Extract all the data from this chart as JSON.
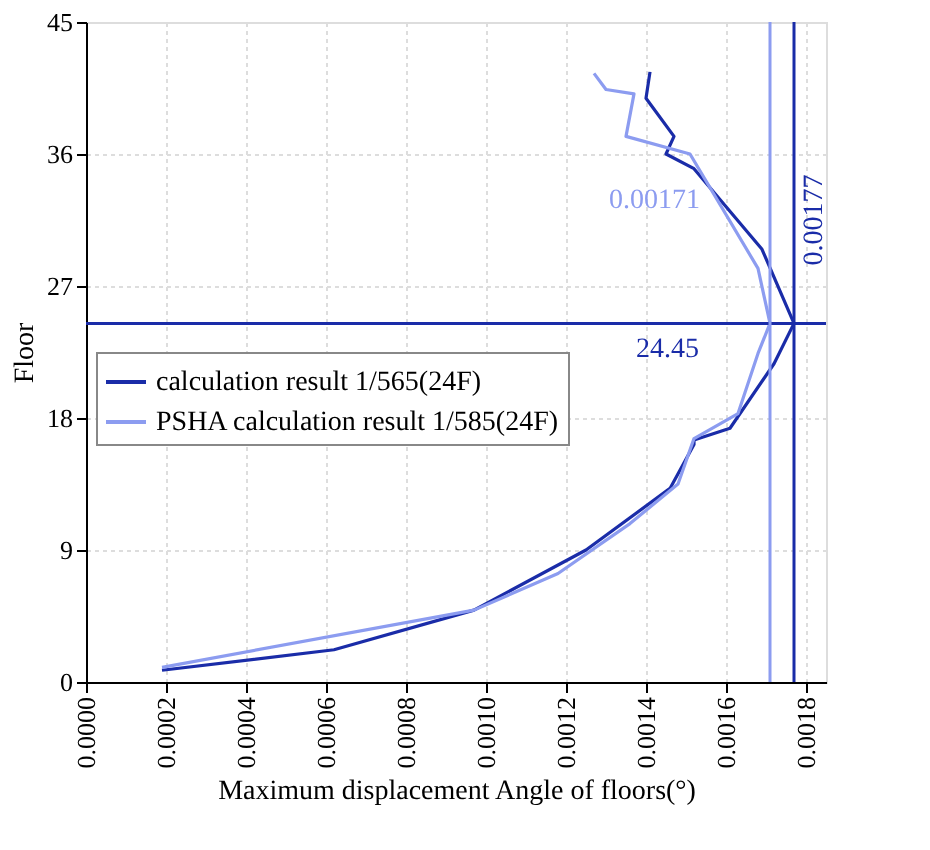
{
  "chart_data": {
    "type": "line",
    "xlabel": "Maximum displacement Angle of floors(°)",
    "ylabel": "Floor",
    "series": [
      {
        "name": "calculation result 1/565(24F)",
        "color": "#1a2ca8",
        "x": [
          0.00019,
          0.00062,
          0.00097,
          0.00125,
          0.00146,
          0.00152,
          0.00152,
          0.00161,
          0.00172,
          0.00177,
          0.00169,
          0.00152,
          0.00145,
          0.00147,
          0.0014,
          0.00141
        ],
        "values": [
          0.8,
          2.2,
          4.9,
          9,
          13.2,
          16.2,
          16.5,
          17.3,
          21.7,
          24.45,
          29.5,
          35,
          36,
          37.2,
          39.8,
          41.6
        ]
      },
      {
        "name": "PSHA calculation result 1/585(24F)",
        "color": "#8c9cf0",
        "x": [
          0.00019,
          0.00097,
          0.00118,
          0.00136,
          0.00148,
          0.00152,
          0.00163,
          0.00168,
          0.00171,
          0.00168,
          0.00151,
          0.00135,
          0.00137,
          0.0013,
          0.00127
        ],
        "values": [
          1.0,
          4.9,
          7.4,
          10.8,
          13.5,
          16.6,
          18.3,
          22.4,
          24.45,
          28.2,
          36,
          37.2,
          40.1,
          40.4,
          41.5
        ]
      }
    ],
    "xlim": [
      0,
      0.00185
    ],
    "ylim": [
      0,
      45
    ],
    "xticks": [
      {
        "value": 0,
        "label": "0.0000"
      },
      0.0002,
      0.0004,
      0.0006,
      0.0008,
      {
        "value": 0.001,
        "label": "0.0010"
      },
      0.0012,
      0.0014,
      0.0016,
      0.0018
    ],
    "yticks": [
      0,
      9,
      18,
      27,
      36,
      45
    ],
    "ref_lines": [
      {
        "axis": "y",
        "value": 24.45,
        "label": "24.45",
        "color": "#1a2ca8"
      },
      {
        "axis": "x",
        "value": 0.00177,
        "label": "0.00177",
        "color": "#1a2ca8"
      },
      {
        "axis": "x",
        "value": 0.00171,
        "label": "0.00171",
        "color": "#8c9cf0"
      }
    ],
    "grid": true,
    "legend": "left",
    "marker": "none",
    "line_style": "solid"
  }
}
